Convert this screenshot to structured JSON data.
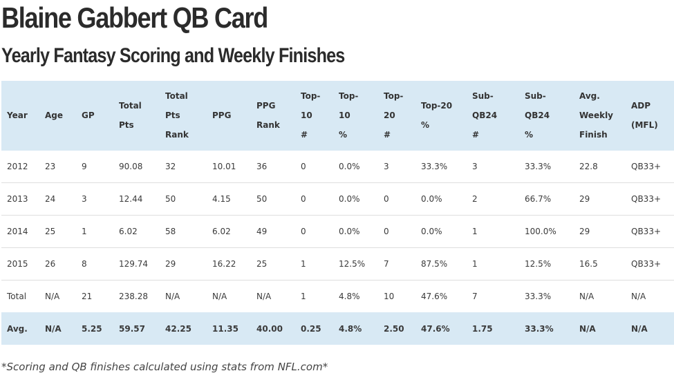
{
  "page": {
    "title": "Blaine Gabbert QB Card",
    "subtitle": "Yearly Fantasy Scoring and Weekly Finishes",
    "footnote": "*Scoring and QB finishes calculated using stats from NFL.com*"
  },
  "table": {
    "headers": [
      [
        "Year"
      ],
      [
        "Age"
      ],
      [
        "GP"
      ],
      [
        "Total",
        "Pts"
      ],
      [
        "Total",
        "Pts",
        "Rank"
      ],
      [
        "PPG"
      ],
      [
        "PPG",
        "Rank"
      ],
      [
        "Top-",
        "10",
        "#"
      ],
      [
        "Top-",
        "10",
        "%"
      ],
      [
        "Top-",
        "20",
        "#"
      ],
      [
        "Top-20",
        "%"
      ],
      [
        "Sub-",
        "QB24",
        "#"
      ],
      [
        "Sub-",
        "QB24",
        "%"
      ],
      [
        "Avg.",
        "Weekly",
        "Finish"
      ],
      [
        "ADP",
        "(MFL)"
      ]
    ],
    "rows": [
      [
        "2012",
        "23",
        "9",
        "90.08",
        "32",
        "10.01",
        "36",
        "0",
        "0.0%",
        "3",
        "33.3%",
        "3",
        "33.3%",
        "22.8",
        "QB33+"
      ],
      [
        "2013",
        "24",
        "3",
        "12.44",
        "50",
        "4.15",
        "50",
        "0",
        "0.0%",
        "0",
        "0.0%",
        "2",
        "66.7%",
        "29",
        "QB33+"
      ],
      [
        "2014",
        "25",
        "1",
        "6.02",
        "58",
        "6.02",
        "49",
        "0",
        "0.0%",
        "0",
        "0.0%",
        "1",
        "100.0%",
        "29",
        "QB33+"
      ],
      [
        "2015",
        "26",
        "8",
        "129.74",
        "29",
        "16.22",
        "25",
        "1",
        "12.5%",
        "7",
        "87.5%",
        "1",
        "12.5%",
        "16.5",
        "QB33+"
      ],
      [
        "Total",
        "N/A",
        "21",
        "238.28",
        "N/A",
        "N/A",
        "N/A",
        "1",
        "4.8%",
        "10",
        "47.6%",
        "7",
        "33.3%",
        "N/A",
        "N/A"
      ],
      [
        "Avg.",
        "N/A",
        "5.25",
        "59.57",
        "42.25",
        "11.35",
        "40.00",
        "0.25",
        "4.8%",
        "2.50",
        "47.6%",
        "1.75",
        "33.3%",
        "N/A",
        "N/A"
      ]
    ]
  },
  "colors": {
    "header_background": "#d8e9f4",
    "row_divider": "#dedede",
    "text": "#3a3a3a"
  }
}
